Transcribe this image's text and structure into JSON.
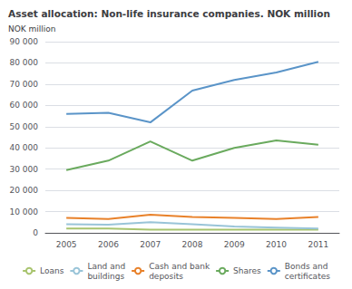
{
  "chart_data": {
    "type": "line",
    "title": "Asset allocation: Non-life insurance companies. NOK million",
    "ylabel": "NOK million",
    "categories": [
      "2005",
      "2006",
      "2007",
      "2008",
      "2009",
      "2010",
      "2011"
    ],
    "series": [
      {
        "name": "Loans",
        "color": "#a8c46e",
        "values": [
          2000,
          2000,
          1500,
          1500,
          1500,
          1500,
          1500
        ]
      },
      {
        "name": "Land and\nbuildings",
        "color": "#99c4d8",
        "values": [
          4000,
          3800,
          5000,
          4000,
          3000,
          2500,
          2000
        ]
      },
      {
        "name": "Cash and bank\ndeposits",
        "color": "#e8812a",
        "values": [
          7000,
          6500,
          8500,
          7500,
          7000,
          6500,
          7500
        ]
      },
      {
        "name": "Shares",
        "color": "#6aaa5e",
        "values": [
          29500,
          34000,
          43000,
          34000,
          40000,
          43500,
          41500
        ]
      },
      {
        "name": "Bonds and\ncertificates",
        "color": "#5a94c8",
        "values": [
          56000,
          56500,
          52000,
          67000,
          72000,
          75500,
          80500
        ]
      }
    ],
    "ylim": [
      0,
      90000
    ],
    "yticks": [
      0,
      {
        "value": 10000,
        "label": "10 000"
      },
      {
        "value": 20000,
        "label": "20 000"
      },
      {
        "value": 30000,
        "label": "30 000"
      },
      {
        "value": 40000,
        "label": "40 000"
      },
      {
        "value": 50000,
        "label": "50 000"
      },
      {
        "value": 60000,
        "label": "60 000"
      },
      {
        "value": 70000,
        "label": "70 000"
      },
      {
        "value": 80000,
        "label": "80 000"
      },
      {
        "value": 90000,
        "label": "90 000"
      }
    ],
    "grid": true,
    "legend": "bottom"
  }
}
